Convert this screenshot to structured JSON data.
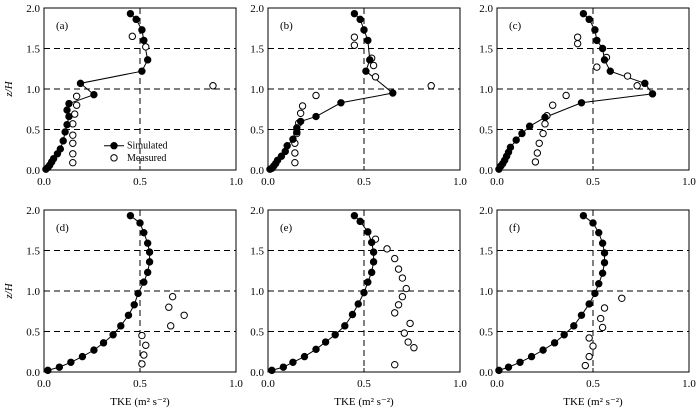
{
  "figure": {
    "ylabel": "z/H",
    "xlabel": "TKE (m² s⁻²)",
    "legend": {
      "simulated": "Simulated",
      "measured": "Measured",
      "location": "panel (a), lower-middle"
    }
  },
  "chart_data": [
    {
      "type": "scatter",
      "panel": "(a)",
      "xlim": [
        0,
        1.0
      ],
      "ylim": [
        0,
        2.0
      ],
      "xticks": [
        "0.0",
        "0.5",
        "1.0"
      ],
      "yticks": [
        "0.0",
        "0.5",
        "1.0",
        "1.5",
        "2.0"
      ],
      "grid": "dashed lines at z/H = 0.5, 1.0, 1.5 and TKE = 0.5",
      "series": [
        {
          "name": "Simulated",
          "marker": "filled-circle-line",
          "points": [
            [
              0.45,
              1.93
            ],
            [
              0.48,
              1.86
            ],
            [
              0.51,
              1.73
            ],
            [
              0.52,
              1.6
            ],
            [
              0.54,
              1.36
            ],
            [
              0.51,
              1.22
            ],
            [
              0.19,
              1.07
            ],
            [
              0.26,
              0.93
            ],
            [
              0.13,
              0.82
            ],
            [
              0.12,
              0.74
            ],
            [
              0.13,
              0.66
            ],
            [
              0.12,
              0.56
            ],
            [
              0.11,
              0.47
            ],
            [
              0.1,
              0.36
            ],
            [
              0.085,
              0.26
            ],
            [
              0.07,
              0.2
            ],
            [
              0.05,
              0.14
            ],
            [
              0.04,
              0.1
            ],
            [
              0.03,
              0.06
            ],
            [
              0.02,
              0.03
            ],
            [
              0.01,
              0.01
            ]
          ]
        },
        {
          "name": "Measured",
          "marker": "open-circle",
          "points": [
            [
              0.46,
              1.65
            ],
            [
              0.53,
              1.52
            ],
            [
              0.88,
              1.04
            ],
            [
              0.17,
              0.91
            ],
            [
              0.17,
              0.8
            ],
            [
              0.16,
              0.69
            ],
            [
              0.15,
              0.57
            ],
            [
              0.15,
              0.43
            ],
            [
              0.15,
              0.33
            ],
            [
              0.15,
              0.2
            ],
            [
              0.15,
              0.09
            ]
          ]
        }
      ]
    },
    {
      "type": "scatter",
      "panel": "(b)",
      "xlim": [
        0,
        1.0
      ],
      "ylim": [
        0,
        2.0
      ],
      "xticks": [
        "0.0",
        "0.5",
        "1.0"
      ],
      "yticks": [
        "0.0",
        "0.5",
        "1.0",
        "1.5",
        "2.0"
      ],
      "series": [
        {
          "name": "Simulated",
          "points": [
            [
              0.45,
              1.93
            ],
            [
              0.48,
              1.86
            ],
            [
              0.5,
              1.73
            ],
            [
              0.52,
              1.6
            ],
            [
              0.53,
              1.36
            ],
            [
              0.51,
              1.22
            ],
            [
              0.65,
              0.95
            ],
            [
              0.38,
              0.83
            ],
            [
              0.25,
              0.66
            ],
            [
              0.17,
              0.6
            ],
            [
              0.15,
              0.52
            ],
            [
              0.15,
              0.47
            ],
            [
              0.13,
              0.38
            ],
            [
              0.1,
              0.3
            ],
            [
              0.09,
              0.23
            ],
            [
              0.07,
              0.17
            ],
            [
              0.05,
              0.12
            ],
            [
              0.04,
              0.08
            ],
            [
              0.03,
              0.05
            ],
            [
              0.02,
              0.02
            ],
            [
              0.01,
              0.01
            ]
          ]
        },
        {
          "name": "Measured",
          "points": [
            [
              0.45,
              1.64
            ],
            [
              0.45,
              1.54
            ],
            [
              0.54,
              1.38
            ],
            [
              0.55,
              1.29
            ],
            [
              0.56,
              1.15
            ],
            [
              0.85,
              1.04
            ],
            [
              0.25,
              0.92
            ],
            [
              0.18,
              0.79
            ],
            [
              0.17,
              0.7
            ],
            [
              0.16,
              0.58
            ],
            [
              0.15,
              0.45
            ],
            [
              0.14,
              0.33
            ],
            [
              0.14,
              0.21
            ],
            [
              0.14,
              0.09
            ]
          ]
        }
      ]
    },
    {
      "type": "scatter",
      "panel": "(c)",
      "xlim": [
        0,
        1.0
      ],
      "ylim": [
        0,
        2.0
      ],
      "xticks": [
        "0.0",
        "0.5",
        "1.0"
      ],
      "yticks": [
        "0.0",
        "0.5",
        "1.0",
        "1.5",
        "2.0"
      ],
      "series": [
        {
          "name": "Simulated",
          "points": [
            [
              0.45,
              1.93
            ],
            [
              0.48,
              1.86
            ],
            [
              0.51,
              1.73
            ],
            [
              0.52,
              1.6
            ],
            [
              0.55,
              1.5
            ],
            [
              0.56,
              1.36
            ],
            [
              0.59,
              1.22
            ],
            [
              0.77,
              1.07
            ],
            [
              0.81,
              0.94
            ],
            [
              0.44,
              0.83
            ],
            [
              0.25,
              0.65
            ],
            [
              0.17,
              0.54
            ],
            [
              0.13,
              0.45
            ],
            [
              0.1,
              0.37
            ],
            [
              0.07,
              0.28
            ],
            [
              0.06,
              0.22
            ],
            [
              0.05,
              0.17
            ],
            [
              0.04,
              0.12
            ],
            [
              0.03,
              0.08
            ],
            [
              0.02,
              0.05
            ],
            [
              0.01,
              0.01
            ]
          ]
        },
        {
          "name": "Measured",
          "points": [
            [
              0.42,
              1.64
            ],
            [
              0.42,
              1.56
            ],
            [
              0.57,
              1.39
            ],
            [
              0.52,
              1.27
            ],
            [
              0.68,
              1.16
            ],
            [
              0.73,
              1.04
            ],
            [
              0.36,
              0.92
            ],
            [
              0.29,
              0.8
            ],
            [
              0.26,
              0.67
            ],
            [
              0.25,
              0.57
            ],
            [
              0.24,
              0.45
            ],
            [
              0.22,
              0.33
            ],
            [
              0.21,
              0.21
            ],
            [
              0.2,
              0.1
            ]
          ]
        }
      ]
    },
    {
      "type": "scatter",
      "panel": "(d)",
      "xlim": [
        0,
        1.0
      ],
      "ylim": [
        0,
        2.0
      ],
      "xticks": [
        "0.0",
        "0.5",
        "1.0"
      ],
      "yticks": [
        "0.0",
        "0.5",
        "1.0",
        "1.5",
        "2.0"
      ],
      "series": [
        {
          "name": "Simulated",
          "points": [
            [
              0.45,
              1.93
            ],
            [
              0.5,
              1.84
            ],
            [
              0.52,
              1.72
            ],
            [
              0.54,
              1.59
            ],
            [
              0.55,
              1.48
            ],
            [
              0.55,
              1.36
            ],
            [
              0.54,
              1.23
            ],
            [
              0.52,
              1.11
            ],
            [
              0.49,
              0.97
            ],
            [
              0.47,
              0.83
            ],
            [
              0.44,
              0.7
            ],
            [
              0.4,
              0.57
            ],
            [
              0.36,
              0.46
            ],
            [
              0.31,
              0.36
            ],
            [
              0.26,
              0.27
            ],
            [
              0.2,
              0.19
            ],
            [
              0.14,
              0.12
            ],
            [
              0.08,
              0.06
            ],
            [
              0.02,
              0.02
            ]
          ]
        },
        {
          "name": "Measured",
          "points": [
            [
              0.67,
              0.93
            ],
            [
              0.65,
              0.8
            ],
            [
              0.73,
              0.7
            ],
            [
              0.66,
              0.57
            ],
            [
              0.51,
              0.45
            ],
            [
              0.53,
              0.33
            ],
            [
              0.52,
              0.21
            ],
            [
              0.51,
              0.1
            ]
          ]
        }
      ]
    },
    {
      "type": "scatter",
      "panel": "(e)",
      "xlim": [
        0,
        1.0
      ],
      "ylim": [
        0,
        2.0
      ],
      "xticks": [
        "0.0",
        "0.5",
        "1.0"
      ],
      "yticks": [
        "0.0",
        "0.5",
        "1.0",
        "1.5",
        "2.0"
      ],
      "series": [
        {
          "name": "Simulated",
          "points": [
            [
              0.45,
              1.93
            ],
            [
              0.48,
              1.86
            ],
            [
              0.52,
              1.73
            ],
            [
              0.54,
              1.6
            ],
            [
              0.55,
              1.48
            ],
            [
              0.55,
              1.36
            ],
            [
              0.54,
              1.23
            ],
            [
              0.52,
              1.11
            ],
            [
              0.5,
              0.98
            ],
            [
              0.47,
              0.84
            ],
            [
              0.44,
              0.71
            ],
            [
              0.4,
              0.57
            ],
            [
              0.35,
              0.46
            ],
            [
              0.3,
              0.37
            ],
            [
              0.25,
              0.28
            ],
            [
              0.19,
              0.19
            ],
            [
              0.13,
              0.12
            ],
            [
              0.08,
              0.06
            ],
            [
              0.02,
              0.02
            ]
          ]
        },
        {
          "name": "Measured",
          "points": [
            [
              0.56,
              1.64
            ],
            [
              0.62,
              1.52
            ],
            [
              0.66,
              1.4
            ],
            [
              0.68,
              1.27
            ],
            [
              0.7,
              1.16
            ],
            [
              0.72,
              1.03
            ],
            [
              0.7,
              0.93
            ],
            [
              0.68,
              0.83
            ],
            [
              0.66,
              0.73
            ],
            [
              0.74,
              0.6
            ],
            [
              0.71,
              0.48
            ],
            [
              0.73,
              0.37
            ],
            [
              0.76,
              0.3
            ],
            [
              0.66,
              0.09
            ]
          ]
        }
      ]
    },
    {
      "type": "scatter",
      "panel": "(f)",
      "xlim": [
        0,
        1.0
      ],
      "ylim": [
        0,
        2.0
      ],
      "xticks": [
        "0.0",
        "0.5",
        "1.0"
      ],
      "yticks": [
        "0.0",
        "0.5",
        "1.0",
        "1.5",
        "2.0"
      ],
      "series": [
        {
          "name": "Simulated",
          "points": [
            [
              0.45,
              1.93
            ],
            [
              0.5,
              1.84
            ],
            [
              0.53,
              1.72
            ],
            [
              0.55,
              1.59
            ],
            [
              0.56,
              1.47
            ],
            [
              0.56,
              1.35
            ],
            [
              0.55,
              1.22
            ],
            [
              0.53,
              1.09
            ],
            [
              0.51,
              0.97
            ],
            [
              0.48,
              0.84
            ],
            [
              0.44,
              0.7
            ],
            [
              0.4,
              0.57
            ],
            [
              0.35,
              0.46
            ],
            [
              0.3,
              0.36
            ],
            [
              0.24,
              0.27
            ],
            [
              0.18,
              0.19
            ],
            [
              0.12,
              0.12
            ],
            [
              0.06,
              0.06
            ],
            [
              0.01,
              0.02
            ]
          ]
        },
        {
          "name": "Measured",
          "points": [
            [
              0.65,
              0.91
            ],
            [
              0.56,
              0.79
            ],
            [
              0.54,
              0.66
            ],
            [
              0.55,
              0.55
            ],
            [
              0.48,
              0.42
            ],
            [
              0.5,
              0.32
            ],
            [
              0.48,
              0.19
            ],
            [
              0.46,
              0.08
            ]
          ]
        }
      ]
    }
  ]
}
